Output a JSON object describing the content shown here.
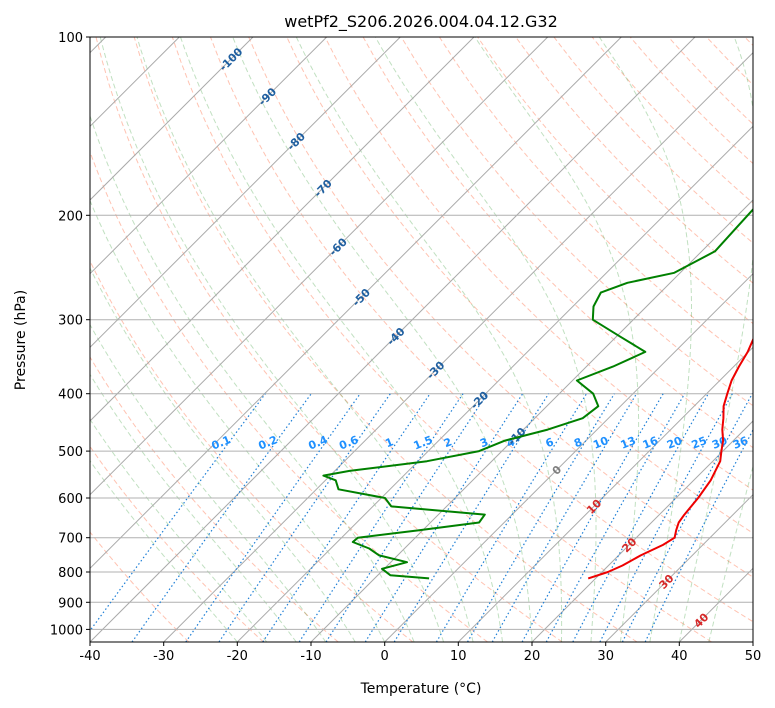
{
  "chart_data": {
    "type": "skew-t",
    "title": "wetPf2_S206.2026.004.04.12.G32",
    "xlabel": "Temperature (°C)",
    "ylabel": "Pressure (hPa)",
    "xlim": [
      -40,
      50
    ],
    "ylim": [
      1050,
      100
    ],
    "x_ticks": [
      -40,
      -30,
      -20,
      -10,
      0,
      10,
      20,
      30,
      40,
      50
    ],
    "y_ticks": [
      100,
      200,
      300,
      400,
      500,
      600,
      700,
      800,
      900,
      1000
    ],
    "isotherm_labels": [
      {
        "text": "-100",
        "value": -100,
        "p": 109
      },
      {
        "text": "-90",
        "value": -90,
        "p": 126
      },
      {
        "text": "-80",
        "value": -80,
        "p": 150
      },
      {
        "text": "-70",
        "value": -70,
        "p": 180
      },
      {
        "text": "-60",
        "value": -60,
        "p": 226
      },
      {
        "text": "-50",
        "value": -50,
        "p": 275
      },
      {
        "text": "-40",
        "value": -40,
        "p": 320
      },
      {
        "text": "-30",
        "value": -30,
        "p": 365
      },
      {
        "text": "-20",
        "value": -20,
        "p": 410
      },
      {
        "text": "-10",
        "value": -10,
        "p": 472
      },
      {
        "text": "0",
        "value": 0,
        "p": 538
      },
      {
        "text": "10",
        "value": 10,
        "p": 620
      },
      {
        "text": "20",
        "value": 20,
        "p": 720
      },
      {
        "text": "30",
        "value": 30,
        "p": 830
      },
      {
        "text": "40",
        "value": 40,
        "p": 965
      }
    ],
    "mixing_ratio_labels": [
      "0.1",
      "0.2",
      "0.4",
      "0.6",
      "1",
      "1.5",
      "2",
      "3",
      "4",
      "6",
      "8",
      "10",
      "13",
      "16",
      "20",
      "25",
      "30",
      "36"
    ],
    "mixing_ratio_values": [
      0.1,
      0.2,
      0.4,
      0.6,
      1,
      1.5,
      2,
      3,
      4,
      6,
      8,
      10,
      13,
      16,
      20,
      25,
      30,
      36
    ],
    "series": [
      {
        "name": "Temperature",
        "color": "#ee0000",
        "points": [
          [
            820,
            19.0
          ],
          [
            800,
            20.8
          ],
          [
            780,
            21.9
          ],
          [
            750,
            23.0
          ],
          [
            720,
            24.6
          ],
          [
            700,
            25.2
          ],
          [
            680,
            24.4
          ],
          [
            660,
            23.7
          ],
          [
            640,
            23.4
          ],
          [
            600,
            23.0
          ],
          [
            560,
            22.3
          ],
          [
            520,
            21.0
          ],
          [
            500,
            19.8
          ],
          [
            480,
            18.6
          ],
          [
            460,
            17.0
          ],
          [
            440,
            15.6
          ],
          [
            420,
            14.0
          ],
          [
            400,
            12.8
          ],
          [
            380,
            11.6
          ],
          [
            360,
            10.7
          ],
          [
            340,
            9.9
          ],
          [
            320,
            8.7
          ],
          [
            300,
            8.0
          ],
          [
            280,
            7.4
          ],
          [
            265,
            6.3
          ],
          [
            250,
            4.7
          ],
          [
            240,
            4.0
          ],
          [
            220,
            3.3
          ],
          [
            200,
            2.7
          ],
          [
            190,
            2.6
          ],
          [
            180,
            3.7
          ],
          [
            170,
            5.4
          ],
          [
            160,
            7.9
          ],
          [
            150,
            10.6
          ],
          [
            140,
            13.5
          ],
          [
            130,
            14.5
          ],
          [
            120,
            13.5
          ],
          [
            110,
            13.3
          ],
          [
            104,
            14.5
          ],
          [
            100,
            13.9
          ]
        ]
      },
      {
        "name": "Dewpoint",
        "color": "#008000",
        "points": [
          [
            820,
            -2.6
          ],
          [
            810,
            -8.3
          ],
          [
            790,
            -10.3
          ],
          [
            770,
            -7.8
          ],
          [
            750,
            -12.5
          ],
          [
            730,
            -14.8
          ],
          [
            712,
            -17.9
          ],
          [
            700,
            -17.8
          ],
          [
            680,
            -10.5
          ],
          [
            660,
            -3.4
          ],
          [
            640,
            -3.7
          ],
          [
            620,
            -17.5
          ],
          [
            600,
            -19.5
          ],
          [
            580,
            -27.0
          ],
          [
            560,
            -28.6
          ],
          [
            550,
            -30.9
          ],
          [
            540,
            -28.0
          ],
          [
            520,
            -18.8
          ],
          [
            500,
            -13.1
          ],
          [
            480,
            -11.0
          ],
          [
            460,
            -6.7
          ],
          [
            440,
            -3.5
          ],
          [
            420,
            -3.0
          ],
          [
            400,
            -5.4
          ],
          [
            380,
            -9.4
          ],
          [
            360,
            -6.4
          ],
          [
            340,
            -4.0
          ],
          [
            320,
            -9.6
          ],
          [
            300,
            -15.5
          ],
          [
            285,
            -17.2
          ],
          [
            270,
            -18.1
          ],
          [
            260,
            -15.8
          ],
          [
            250,
            -10.8
          ],
          [
            230,
            -8.2
          ],
          [
            210,
            -8.5
          ],
          [
            190,
            -8.8
          ],
          [
            170,
            -12.1
          ],
          [
            160,
            -14.1
          ],
          [
            150,
            -13.9
          ],
          [
            140,
            -13.5
          ],
          [
            130,
            -15.4
          ],
          [
            120,
            -15.6
          ],
          [
            110,
            -12.5
          ],
          [
            100,
            -4.5
          ]
        ]
      }
    ],
    "grid": true
  }
}
